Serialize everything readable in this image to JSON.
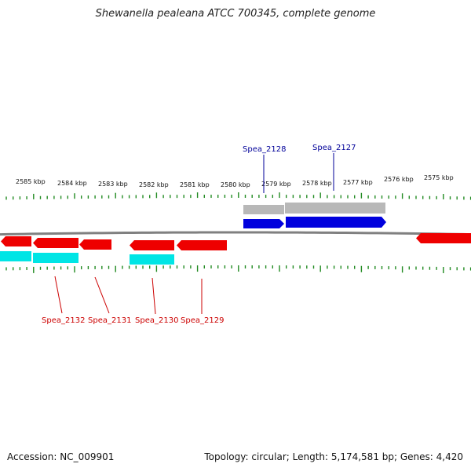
{
  "title": "Shewanella pealeana ATCC 700345, complete genome",
  "accession": "Accession: NC_009901",
  "summary": "Topology: circular; Length: 5,174,581 bp; Genes: 4,420",
  "colors": {
    "backbone": "#808080",
    "tick": "#228b22",
    "forward_cds": "#0000dd",
    "forward_gene": "#b8b8b8",
    "reverse_cds": "#ee0000",
    "reverse_gene": "#00e5e5",
    "forward_label": "#000099",
    "reverse_label": "#cc0000"
  },
  "ruler": [
    "2585 kbp",
    "2584 kbp",
    "2583 kbp",
    "2582 kbp",
    "2581 kbp",
    "2580 kbp",
    "2579 kbp",
    "2578 kbp",
    "2577 kbp",
    "2576 kbp",
    "2575 kbp"
  ],
  "labels": {
    "forward": [
      "Spea_2128",
      "Spea_2127"
    ],
    "reverse": [
      "Spea_2132",
      "Spea_2131",
      "Spea_2130",
      "Spea_2129"
    ]
  }
}
